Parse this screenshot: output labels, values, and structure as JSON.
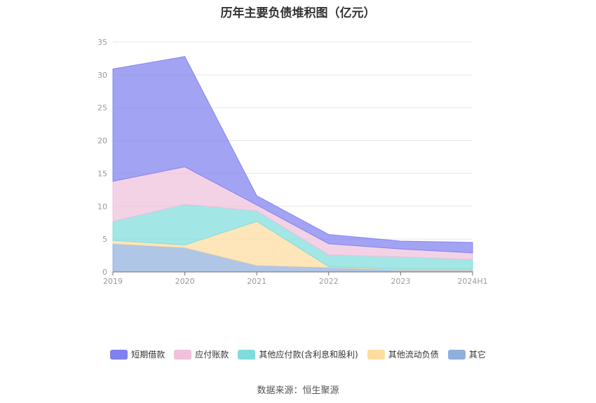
{
  "chart_data": {
    "type": "area",
    "stacked": true,
    "title": "历年主要负债堆积图（亿元）",
    "categories": [
      "2019",
      "2020",
      "2021",
      "2022",
      "2023",
      "2024H1"
    ],
    "ylim": [
      0,
      35
    ],
    "yticks": [
      0,
      5,
      10,
      15,
      20,
      25,
      30,
      35
    ],
    "grid": true,
    "legend_position": "bottom",
    "series": [
      {
        "name": "短期借款",
        "color": "#8080f0",
        "values": [
          17.1,
          16.8,
          1.4,
          1.4,
          1.2,
          1.6
        ]
      },
      {
        "name": "应付账款",
        "color": "#f0c0dc",
        "values": [
          6.1,
          5.7,
          0.9,
          1.7,
          1.2,
          1.0
        ]
      },
      {
        "name": "其他应付款(含利息和股利)",
        "color": "#80dcdc",
        "values": [
          2.9,
          6.2,
          1.6,
          1.8,
          1.9,
          1.5
        ]
      },
      {
        "name": "其他流动负债",
        "color": "#ffdca0",
        "values": [
          0.5,
          0.4,
          6.7,
          0.1,
          0.1,
          0.1
        ]
      },
      {
        "name": "其它",
        "color": "#90b0dc",
        "values": [
          4.3,
          3.7,
          1.0,
          0.7,
          0.3,
          0.3
        ]
      }
    ]
  },
  "source": "数据来源：恒生聚源"
}
